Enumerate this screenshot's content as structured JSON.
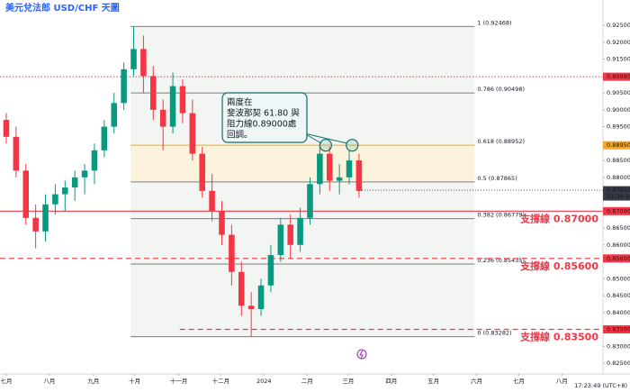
{
  "chart_data": {
    "type": "candlestick",
    "title": "美元兌法郎 USD/CHF 天圖",
    "up_color": "#089981",
    "down_color": "#f23645",
    "candles": {
      "x": [
        0,
        1,
        2,
        3,
        4,
        5,
        6,
        7,
        8,
        9,
        10,
        11,
        12,
        13,
        14,
        15,
        16,
        17,
        18,
        19,
        20,
        21,
        22,
        23,
        24,
        25,
        26,
        27,
        28,
        29,
        30,
        31,
        32,
        33,
        34,
        35,
        36
      ],
      "open": [
        0.897,
        0.892,
        0.882,
        0.868,
        0.864,
        0.872,
        0.875,
        0.877,
        0.88,
        0.882,
        0.888,
        0.895,
        0.902,
        0.912,
        0.918,
        0.91,
        0.9,
        0.895,
        0.907,
        0.899,
        0.887,
        0.876,
        0.87,
        0.863,
        0.852,
        0.842,
        0.841,
        0.848,
        0.857,
        0.866,
        0.86,
        0.868,
        0.878,
        0.887,
        0.879,
        0.88,
        0.885
      ],
      "high": [
        0.899,
        0.895,
        0.884,
        0.872,
        0.875,
        0.878,
        0.879,
        0.882,
        0.884,
        0.89,
        0.897,
        0.905,
        0.914,
        0.92468,
        0.922,
        0.913,
        0.903,
        0.911,
        0.909,
        0.903,
        0.889,
        0.881,
        0.873,
        0.866,
        0.855,
        0.846,
        0.85,
        0.86,
        0.868,
        0.869,
        0.871,
        0.88,
        0.89,
        0.889,
        0.884,
        0.888,
        0.887
      ],
      "low": [
        0.89,
        0.88,
        0.866,
        0.859,
        0.861,
        0.869,
        0.87,
        0.873,
        0.875,
        0.878,
        0.886,
        0.893,
        0.9,
        0.91,
        0.905,
        0.897,
        0.888,
        0.893,
        0.896,
        0.885,
        0.874,
        0.867,
        0.86,
        0.848,
        0.839,
        0.83282,
        0.839,
        0.846,
        0.855,
        0.856,
        0.858,
        0.866,
        0.875,
        0.876,
        0.875,
        0.878,
        0.874
      ],
      "close": [
        0.892,
        0.882,
        0.868,
        0.864,
        0.872,
        0.875,
        0.877,
        0.88,
        0.882,
        0.888,
        0.895,
        0.902,
        0.912,
        0.918,
        0.91,
        0.9,
        0.895,
        0.907,
        0.899,
        0.887,
        0.876,
        0.87,
        0.863,
        0.852,
        0.842,
        0.841,
        0.848,
        0.857,
        0.866,
        0.86,
        0.868,
        0.878,
        0.887,
        0.879,
        0.88,
        0.885,
        0.876
      ]
    },
    "xlim": [
      -0.64,
      60.9
    ],
    "xticks": [
      {
        "value": 0,
        "label": "七月"
      },
      {
        "value": 4.4,
        "label": "八月"
      },
      {
        "value": 8.9,
        "label": "九月"
      },
      {
        "value": 13.1,
        "label": "十月"
      },
      {
        "value": 17.6,
        "label": "十一月"
      },
      {
        "value": 21.9,
        "label": "十二月"
      },
      {
        "value": 26.3,
        "label": "2024"
      },
      {
        "value": 30.7,
        "label": "二月"
      },
      {
        "value": 34.9,
        "label": "三月"
      },
      {
        "value": 39.3,
        "label": "四月"
      },
      {
        "value": 43.6,
        "label": "五月"
      },
      {
        "value": 48,
        "label": "六月"
      },
      {
        "value": 52.3,
        "label": "七月"
      },
      {
        "value": 56.7,
        "label": "八月"
      }
    ],
    "ylim": [
      0.8218,
      0.9325
    ],
    "yticks": [
      {
        "value": 0.925,
        "label": "0.92500"
      },
      {
        "value": 0.92,
        "label": "0.92000"
      },
      {
        "value": 0.915,
        "label": "0.91500"
      },
      {
        "value": 0.91,
        "label": "0.91000"
      },
      {
        "value": 0.905,
        "label": "0.90500"
      },
      {
        "value": 0.9,
        "label": "0.90000"
      },
      {
        "value": 0.895,
        "label": "0.89500"
      },
      {
        "value": 0.89,
        "label": "0.89000"
      },
      {
        "value": 0.885,
        "label": "0.88500"
      },
      {
        "value": 0.88,
        "label": "0.88000"
      },
      {
        "value": 0.875,
        "label": "0.87500"
      },
      {
        "value": 0.865,
        "label": "0.86500"
      },
      {
        "value": 0.86,
        "label": "0.86000"
      },
      {
        "value": 0.85,
        "label": "0.85000"
      },
      {
        "value": 0.845,
        "label": "0.84500"
      },
      {
        "value": 0.84,
        "label": "0.84000"
      },
      {
        "value": 0.83,
        "label": "0.83000"
      },
      {
        "value": 0.825,
        "label": "0.82500"
      }
    ],
    "fib_x": [
      12.7,
      47.8
    ],
    "fib_levels": [
      {
        "value": 0.92468,
        "label": "1 (0.92468)",
        "color": "#787b86"
      },
      {
        "value": 0.90498,
        "label": "0.786 (0.90498)",
        "color": "#787b86"
      },
      {
        "value": 0.88952,
        "label": "0.618 (0.88952)",
        "color": "#f5a623"
      },
      {
        "value": 0.87865,
        "label": "0.5 (0.87865)",
        "color": "#787b86"
      },
      {
        "value": 0.86779,
        "label": "0.382 (0.86779)",
        "color": "#787b86"
      },
      {
        "value": 0.85435,
        "label": "0.236 (0.85435)",
        "color": "#787b86"
      },
      {
        "value": 0.83282,
        "label": "0 (0.83282)",
        "color": "#787b86"
      }
    ],
    "resistance": {
      "value": 0.9098,
      "label": "0.90980",
      "color": "#f23645"
    },
    "supports": [
      {
        "value": 0.87,
        "axis_label": "0.87000",
        "label": "支撐線 0.87000",
        "style": "solid",
        "from": -0.64
      },
      {
        "value": 0.856,
        "axis_label": "0.85600",
        "label": "支撐線 0.85600",
        "style": "dashed",
        "from": -0.64
      },
      {
        "value": 0.835,
        "axis_label": "0.83500",
        "label": "支撐線 0.83500",
        "style": "dashed",
        "from": 17.7
      }
    ],
    "support_color": "#f23645",
    "fib_axis_label": {
      "value": 0.8895,
      "label": "0.88950",
      "color": "#f5a623"
    },
    "current": {
      "value": 0.8762,
      "label": "0.87620",
      "time": "11:36:10",
      "color": "#363a45"
    },
    "markers": [
      {
        "x": 32.6,
        "y": 0.8895
      },
      {
        "x": 35.3,
        "y": 0.8895
      }
    ],
    "annotation": [
      "兩度在",
      "斐波那契 61.80 與",
      "阻力線0.89000處",
      "回調。"
    ],
    "clock": "17:23:49 (UTC+8)"
  }
}
